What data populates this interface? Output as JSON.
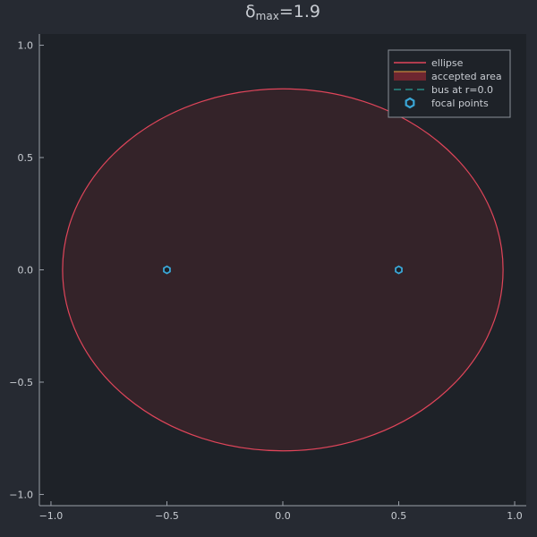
{
  "chart_data": {
    "type": "line",
    "title": {
      "main": "δ",
      "sub": "max",
      "rest": "=1.9"
    },
    "xlabel": "",
    "ylabel": "",
    "xlim": [
      -1.05,
      1.05
    ],
    "ylim": [
      -1.05,
      1.05
    ],
    "xticks": [
      -1.0,
      -0.5,
      0.0,
      0.5,
      1.0
    ],
    "yticks": [
      -1.0,
      -0.5,
      0.0,
      0.5,
      1.0
    ],
    "xtick_labels": [
      "−1.0",
      "−0.5",
      "0.0",
      "0.5",
      "1.0"
    ],
    "ytick_labels": [
      "−1.0",
      "−0.5",
      "0.0",
      "0.5",
      "1.0"
    ],
    "grid": false,
    "legend_position": "top-right",
    "ellipse": {
      "center": [
        0.0,
        0.0
      ],
      "semi_major": 0.95,
      "semi_minor": 0.806,
      "color": "#e0455a"
    },
    "accepted_area": {
      "fill_color": "#6e2630"
    },
    "bus": {
      "r": 0.0,
      "color": "#2aa198"
    },
    "focal_points": {
      "x": [
        -0.5,
        0.5
      ],
      "y": [
        0.0,
        0.0
      ],
      "color": "#3aa6d6"
    },
    "legend": [
      {
        "key": "ellipse",
        "label": "ellipse"
      },
      {
        "key": "accepted_area",
        "label": "accepted area"
      },
      {
        "key": "bus",
        "label": "bus at r=0.0"
      },
      {
        "key": "focal_points",
        "label": "focal points"
      }
    ]
  },
  "colors": {
    "background": "#262a32",
    "plot_background": "#1e2228",
    "axis": "#9aa0a8",
    "text": "#c8ccd2"
  }
}
